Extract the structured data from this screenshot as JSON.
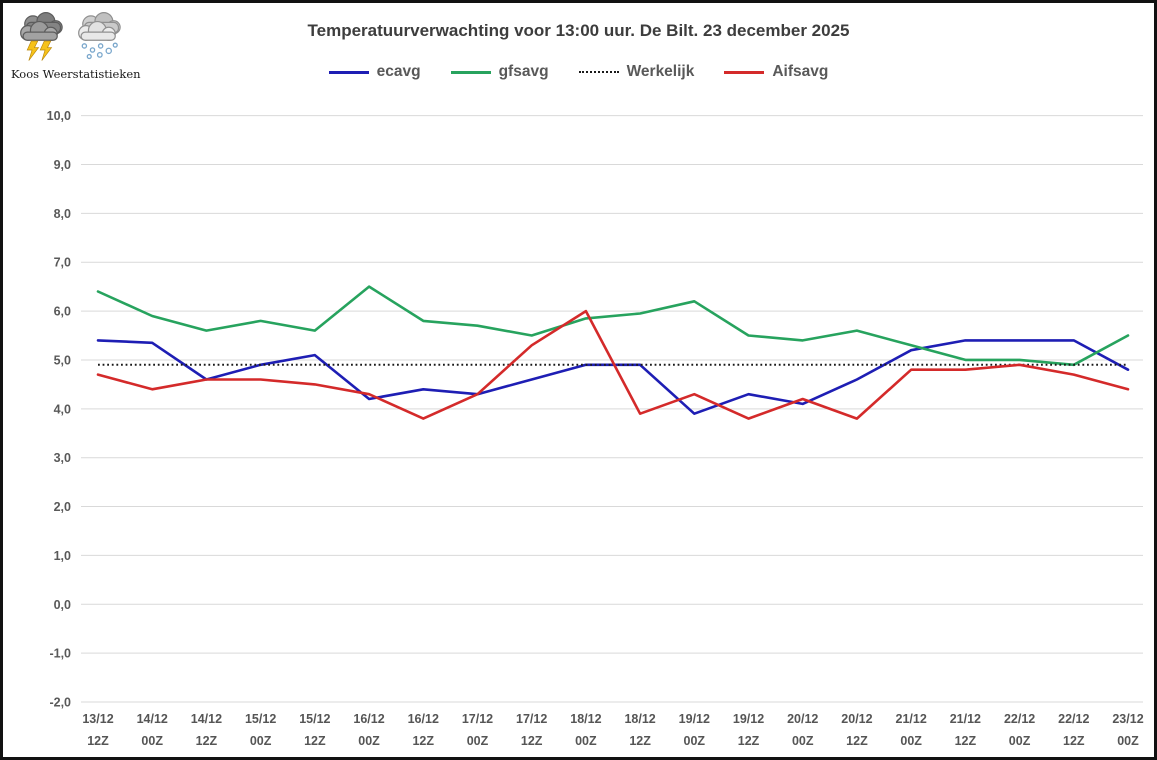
{
  "logo": {
    "text": "Koos Weerstatistieken",
    "icons": [
      "storm-cloud-icon",
      "snow-cloud-icon"
    ]
  },
  "title": "Temperatuurverwachting voor 13:00 uur. De Bilt. 23 december 2025",
  "chart_data": {
    "type": "line",
    "title": "Temperatuurverwachting voor 13:00 uur. De Bilt. 23 december 2025",
    "categories": [
      {
        "date": "13/12",
        "time": "12Z"
      },
      {
        "date": "14/12",
        "time": "00Z"
      },
      {
        "date": "14/12",
        "time": "12Z"
      },
      {
        "date": "15/12",
        "time": "00Z"
      },
      {
        "date": "15/12",
        "time": "12Z"
      },
      {
        "date": "16/12",
        "time": "00Z"
      },
      {
        "date": "16/12",
        "time": "12Z"
      },
      {
        "date": "17/12",
        "time": "00Z"
      },
      {
        "date": "17/12",
        "time": "12Z"
      },
      {
        "date": "18/12",
        "time": "00Z"
      },
      {
        "date": "18/12",
        "time": "12Z"
      },
      {
        "date": "19/12",
        "time": "00Z"
      },
      {
        "date": "19/12",
        "time": "12Z"
      },
      {
        "date": "20/12",
        "time": "00Z"
      },
      {
        "date": "20/12",
        "time": "12Z"
      },
      {
        "date": "21/12",
        "time": "00Z"
      },
      {
        "date": "21/12",
        "time": "12Z"
      },
      {
        "date": "22/12",
        "time": "00Z"
      },
      {
        "date": "22/12",
        "time": "12Z"
      },
      {
        "date": "23/12",
        "time": "00Z"
      }
    ],
    "series": [
      {
        "name": "ecavg",
        "color": "#1e1eb4",
        "style": "solid",
        "values": [
          5.4,
          5.35,
          4.6,
          4.9,
          5.1,
          4.2,
          4.4,
          4.3,
          4.6,
          4.9,
          4.9,
          3.9,
          4.3,
          4.1,
          4.6,
          5.2,
          5.4,
          5.4,
          5.4,
          4.8
        ]
      },
      {
        "name": "gfsavg",
        "color": "#27a35e",
        "style": "solid",
        "values": [
          6.4,
          5.9,
          5.6,
          5.8,
          5.6,
          6.5,
          5.8,
          5.7,
          5.5,
          5.85,
          5.95,
          6.2,
          5.5,
          5.4,
          5.6,
          5.3,
          5.0,
          5.0,
          4.9,
          5.5
        ]
      },
      {
        "name": "Werkelijk",
        "color": "#1a1a1a",
        "style": "dotted",
        "values": [
          4.9,
          4.9,
          4.9,
          4.9,
          4.9,
          4.9,
          4.9,
          4.9,
          4.9,
          4.9,
          4.9,
          4.9,
          4.9,
          4.9,
          4.9,
          4.9,
          4.9,
          4.9,
          4.9,
          4.9
        ]
      },
      {
        "name": "Aifsavg",
        "color": "#d42a2a",
        "style": "solid",
        "values": [
          4.7,
          4.4,
          4.6,
          4.6,
          4.5,
          4.3,
          3.8,
          4.3,
          5.3,
          6.0,
          3.9,
          4.3,
          3.8,
          4.2,
          3.8,
          4.8,
          4.8,
          4.9,
          4.7,
          4.4
        ]
      }
    ],
    "ylim": [
      -2.0,
      10.0
    ],
    "y_tick_step": 1.0,
    "y_tick_labels": [
      "10,0",
      "9,0",
      "8,0",
      "7,0",
      "6,0",
      "5,0",
      "4,0",
      "3,0",
      "2,0",
      "1,0",
      "0,0",
      "-1,0",
      "-2,0"
    ],
    "y_tick_values": [
      10,
      9,
      8,
      7,
      6,
      5,
      4,
      3,
      2,
      1,
      0,
      -1,
      -2
    ],
    "xlabel": "",
    "ylabel": "",
    "grid": "horizontal",
    "legend_position": "top",
    "grid_color": "#d9d9d9",
    "label_color": "#595959"
  }
}
